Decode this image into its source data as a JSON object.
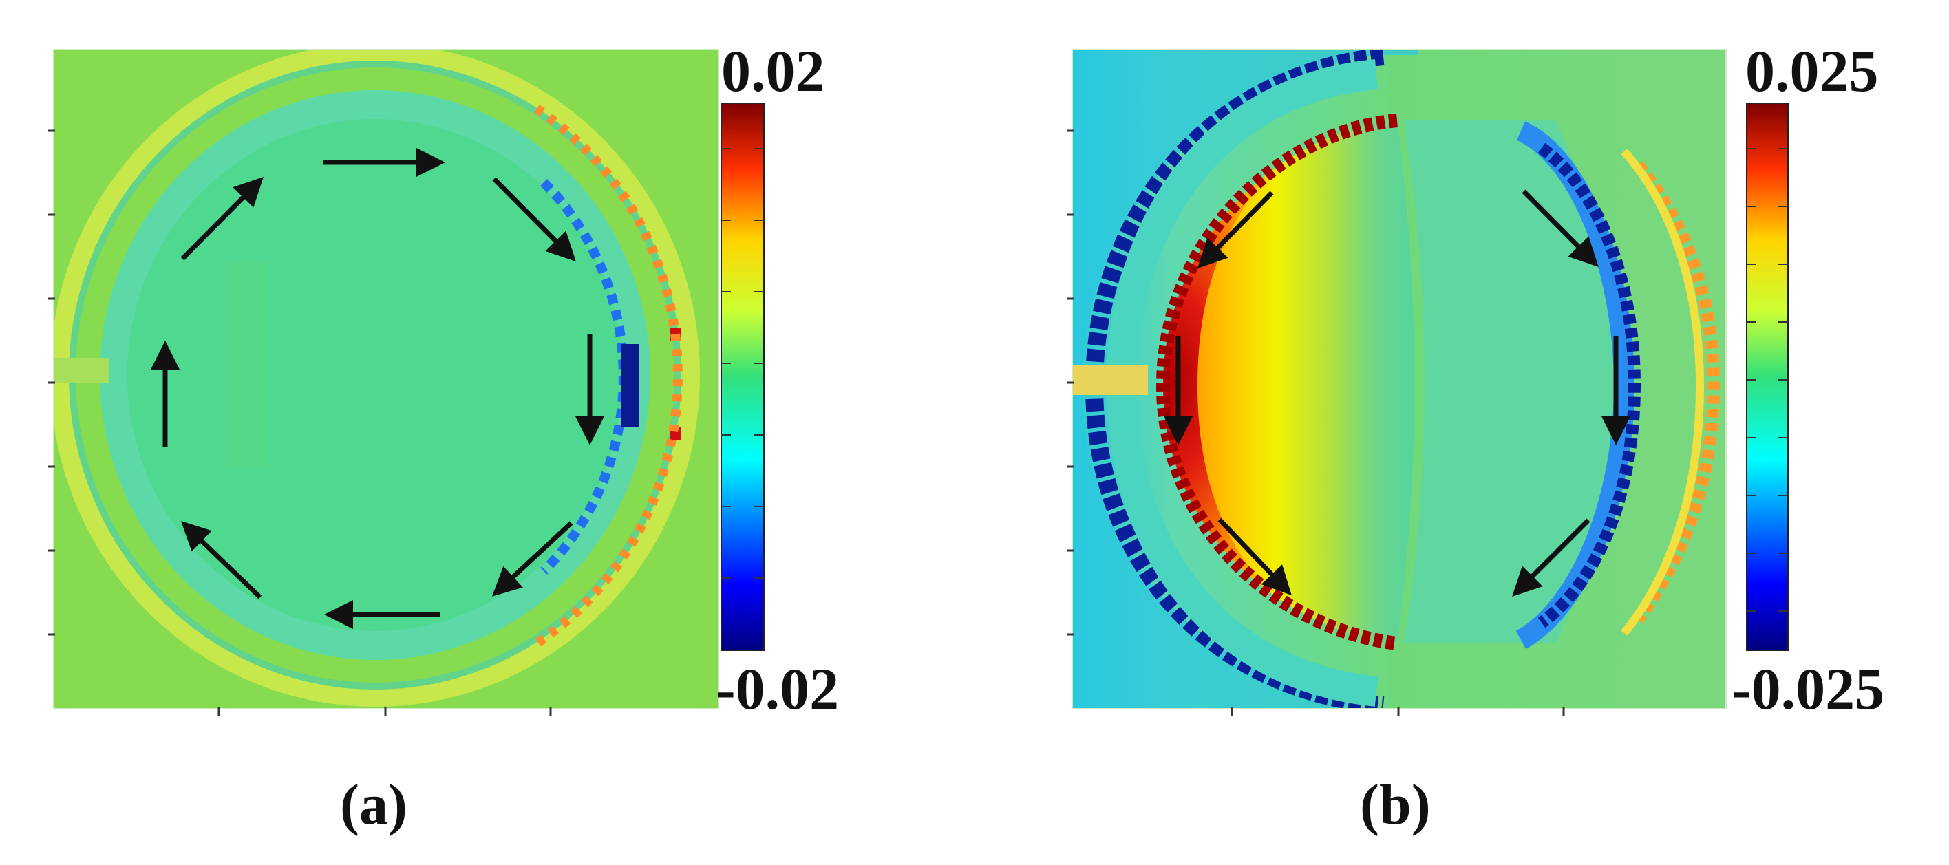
{
  "panels": [
    {
      "id": "a",
      "caption": "(a)",
      "colorbar": {
        "max_label": "0.02",
        "min_label": "-0.02",
        "max": 0.02,
        "min": -0.02
      },
      "flow": "clockwise"
    },
    {
      "id": "b",
      "caption": "(b)",
      "colorbar": {
        "max_label": "0.025",
        "min_label": "-0.025",
        "max": 0.025,
        "min": -0.025
      },
      "flow": "split"
    }
  ],
  "colors": {
    "dark_red": "#8b0000",
    "red": "#e11d1d",
    "orange": "#ff8a00",
    "yellow": "#f2f200",
    "yellow_green": "#a8e040",
    "green": "#7ed957",
    "cyan": "#22d3ee",
    "blue": "#2563eb",
    "dark_blue": "#0b1a8f",
    "arrow": "#111111"
  }
}
